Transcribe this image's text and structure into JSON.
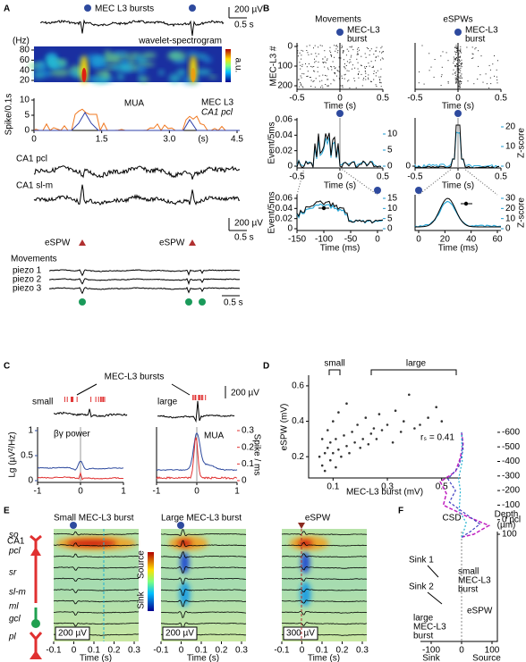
{
  "panels": {
    "A": {
      "label": "A",
      "bursts_label": "MEC L3 bursts",
      "scale1_v": "200 µV",
      "scale1_t": "0.5 s",
      "freq_unit": "(Hz)",
      "spectrogram_title": "wavelet-spectrogram",
      "colorbar_label": "a.u.",
      "freq_ticks": [
        80,
        60,
        40,
        20
      ],
      "mua_title": "MUA",
      "mua_legend": [
        "MEC L3",
        "CA1 pcl"
      ],
      "mua_ylabel": "Spike/0.1s",
      "mua_yticks": [
        0,
        5,
        10
      ],
      "mua_xticks": [
        0,
        1.5,
        {
          "value": 3,
          "label": "3.0"
        },
        4.5
      ],
      "mua_xunit": "(s)",
      "traces": [
        "CA1 pcl",
        "CA1 sl-m"
      ],
      "scale2_v": "200 µV",
      "scale2_t": "0.5 s",
      "espw_labels": [
        "eSPW",
        "eSPW"
      ],
      "movements": "Movements",
      "piezo": [
        "piezo 1",
        "piezo 2",
        "piezo 3"
      ],
      "scale3_t": "0.5 s"
    },
    "B": {
      "label": "B",
      "titles": [
        "Movements",
        "eSPWs"
      ],
      "burst_label": [
        "MEC-L3",
        "burst"
      ],
      "raster_ylabel": "MEC-L3 #",
      "raster_yticks": [
        0,
        100,
        200
      ],
      "raster_xticks_left": [
        -0.5,
        0,
        0.5
      ],
      "raster_xticks_right": [
        -0.5,
        0,
        0.5
      ],
      "time_s": "Time (s)",
      "hist_ylabel": "Event/5ms",
      "hist_yticks_left": [
        0,
        0.02,
        0.04,
        0.06
      ],
      "hist_zticks_left": [
        0,
        5,
        10
      ],
      "hist_yticks_right": [
        0
      ],
      "hist_zticks_right": [
        0,
        10,
        20
      ],
      "hist_xticks_left": [
        -0.5,
        0,
        0.5
      ],
      "hist_xticks_right": [
        -0.5,
        0,
        0.5
      ],
      "zscore": "Z-score",
      "zoom_yticks_left": [
        0,
        0.02,
        0.04,
        0.06
      ],
      "zoom_zticks_left": [
        0,
        5,
        10,
        15
      ],
      "zoom_xticks_left": [
        -150,
        -100,
        -50,
        0
      ],
      "zoom_zticks_right": [
        0,
        10,
        20,
        30
      ],
      "zoom_xticks_right": [
        0,
        20,
        40,
        60
      ],
      "time_ms": "Time (ms)"
    },
    "C": {
      "label": "C",
      "title": "MEC-L3 bursts",
      "small": "small",
      "large": "large",
      "scale": "200 µV",
      "power_label": "βγ power",
      "power_ylabel": "Lg (µV²/Hz)",
      "power_yticks": [
        0,
        0.5,
        1
      ],
      "mua_label": "MUA",
      "mua_ylabel": "Spike / ms",
      "mua_yticks": [
        0,
        0.1,
        0.2,
        0.3
      ],
      "xticks_left": [
        -1,
        0,
        1
      ],
      "xticks_right": [
        -1,
        0,
        1
      ]
    },
    "D": {
      "label": "D",
      "type": "scatter",
      "ylabel": "eSPW (mV)",
      "xlabel": "MEC-L3 burst (mV)",
      "small": "small",
      "large": "large",
      "stat": "rₛ = 0.41",
      "xlim": [
        0.01,
        0.57
      ],
      "ylim": [
        0.08,
        0.66
      ],
      "xticks": [
        0.1,
        0.3,
        0.5
      ],
      "yticks": [
        0.2,
        0.4,
        0.6
      ],
      "color": "#333333",
      "x": [
        0.05,
        0.06,
        0.06,
        0.07,
        0.07,
        0.08,
        0.08,
        0.09,
        0.09,
        0.1,
        0.1,
        0.11,
        0.11,
        0.12,
        0.12,
        0.13,
        0.14,
        0.15,
        0.15,
        0.16,
        0.17,
        0.18,
        0.19,
        0.2,
        0.21,
        0.22,
        0.23,
        0.24,
        0.25,
        0.26,
        0.27,
        0.28,
        0.3,
        0.32,
        0.33,
        0.35,
        0.36,
        0.38,
        0.4,
        0.42,
        0.45,
        0.48,
        0.5
      ],
      "y": [
        0.2,
        0.15,
        0.3,
        0.22,
        0.12,
        0.25,
        0.35,
        0.18,
        0.28,
        0.22,
        0.4,
        0.14,
        0.3,
        0.24,
        0.45,
        0.2,
        0.32,
        0.26,
        0.5,
        0.22,
        0.34,
        0.28,
        0.38,
        0.25,
        0.3,
        0.42,
        0.27,
        0.33,
        0.36,
        0.3,
        0.44,
        0.35,
        0.38,
        0.28,
        0.46,
        0.34,
        0.4,
        0.55,
        0.36,
        0.38,
        0.42,
        0.48,
        0.4
      ]
    },
    "E": {
      "label": "E",
      "region": "CA1",
      "titles": [
        "Small MEC-L3 burst",
        "Large MEC-L3 burst",
        "eSPW"
      ],
      "layers": [
        "so",
        "pcl",
        "sr",
        "sl-m",
        "ml",
        "gcl",
        "pl"
      ],
      "colorbar": [
        "Source",
        "Sink"
      ],
      "scales": [
        "200 µV",
        "200 µV",
        "300 µV"
      ],
      "xticks_1": [
        -0.1,
        0,
        0.1,
        0.2,
        0.3
      ],
      "xticks_2": [
        -0.1,
        0,
        0.1,
        0.2,
        0.3
      ],
      "xticks_3": [
        -0.1,
        0,
        0.1,
        0.2,
        0.3
      ],
      "xlabel": "Time (s)"
    },
    "F": {
      "label": "F",
      "title": "CSD",
      "depth": [
        "Depth",
        "(µm)"
      ],
      "yticks": [
        100,
        {
          "value": 0,
          "label": "0 pcl"
        },
        -100,
        -200,
        -300,
        -400,
        -500,
        -600
      ],
      "xticks": [
        -100,
        0,
        100
      ],
      "sink": "Sink",
      "source": "Source",
      "sink1": "Sink 1",
      "sink2": "Sink 2",
      "small_burst": [
        "small",
        "MEC-L3",
        "burst"
      ],
      "espw": "eSPW",
      "large_burst": [
        "large",
        "MEC-L3",
        "burst"
      ]
    }
  }
}
